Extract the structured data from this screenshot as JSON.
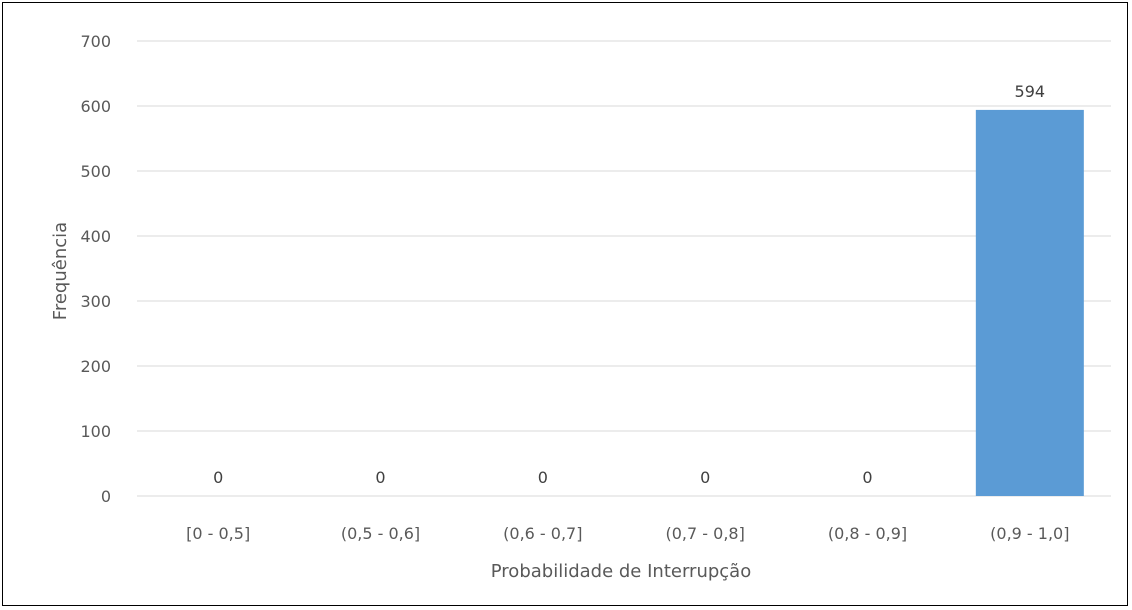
{
  "chart_data": {
    "type": "bar",
    "categories": [
      "[0 - 0,5]",
      "(0,5 - 0,6]",
      "(0,6 - 0,7]",
      "(0,7 - 0,8]",
      "(0,8 - 0,9]",
      "(0,9 - 1,0]"
    ],
    "values": [
      0,
      0,
      0,
      0,
      0,
      594
    ],
    "data_labels": [
      "0",
      "0",
      "0",
      "0",
      "0",
      "594"
    ],
    "xlabel": "Probabilidade de Interrupção",
    "ylabel": "Frequência",
    "ylim": [
      0,
      700
    ],
    "yticks": [
      0,
      100,
      200,
      300,
      400,
      500,
      600,
      700
    ],
    "grid": true,
    "legend": "none",
    "bar_color": "#5B9BD5",
    "grid_color": "#D9D9D9"
  }
}
